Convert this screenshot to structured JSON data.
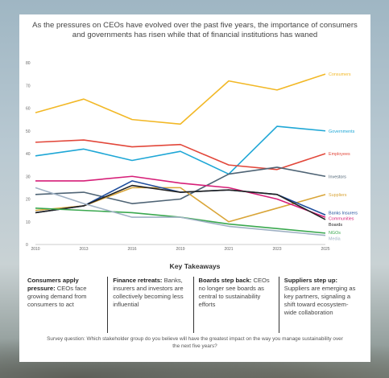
{
  "title": "As the pressures on CEOs have evolved over the past five years, the importance of consumers and governments has risen while that of financial institutions has waned",
  "chart_data": {
    "type": "line",
    "x": [
      "2010",
      "2013",
      "2016",
      "2019",
      "2021",
      "2023",
      "2025"
    ],
    "ylim": [
      0,
      80
    ],
    "yticks": [
      0,
      10,
      20,
      30,
      40,
      50,
      60,
      70,
      80
    ],
    "grid": false,
    "legend": "labels at line ends",
    "series": [
      {
        "name": "Consumers",
        "color": "#f2b826",
        "values": [
          58,
          64,
          55,
          53,
          72,
          68,
          75
        ]
      },
      {
        "name": "Governments",
        "color": "#1fa7d6",
        "values": [
          39,
          42,
          37,
          41,
          31,
          52,
          50
        ]
      },
      {
        "name": "Employees",
        "color": "#e2473a",
        "values": [
          45,
          46,
          43,
          44,
          35,
          33,
          40
        ]
      },
      {
        "name": "Investors",
        "color": "#4f6475",
        "values": [
          22,
          23,
          18,
          20,
          31,
          34,
          30
        ]
      },
      {
        "name": "Suppliers",
        "color": "#d9a538",
        "values": [
          15,
          17,
          25,
          25,
          10,
          16,
          22
        ]
      },
      {
        "name": "Banks Insurers",
        "color": "#1f4e9c",
        "values": [
          14,
          17,
          28,
          23,
          24,
          22,
          13
        ]
      },
      {
        "name": "Communities",
        "color": "#d61f78",
        "values": [
          28,
          28,
          30,
          27,
          25,
          20,
          12
        ]
      },
      {
        "name": "Boards",
        "color": "#222222",
        "values": [
          14,
          17,
          26,
          23,
          24,
          22,
          11
        ]
      },
      {
        "name": "NGOs",
        "color": "#3aa84f",
        "values": [
          16,
          15,
          14,
          12,
          9,
          7,
          5
        ]
      },
      {
        "name": "Media",
        "color": "#9fb1c4",
        "values": [
          25,
          18,
          12,
          12,
          8,
          6,
          4
        ]
      }
    ]
  },
  "takeaways_title": "Key Takeaways",
  "takeaways": [
    {
      "head": "Consumers apply pressure:",
      "body": " CEOs face growing demand from consumers to act"
    },
    {
      "head": "Finance retreats:",
      "body": " Banks, insurers and investors are collectively becoming less influential"
    },
    {
      "head": "Boards step back:",
      "body": " CEOs no longer see boards as central to sustainability efforts"
    },
    {
      "head": "Suppliers step up:",
      "body": " Suppliers are emerging as key partners, signaling a shift toward ecosystem-wide collaboration"
    }
  ],
  "survey": "Survey question: Which stakeholder group do you believe will have the greatest impact on the way you manage sustainability over the next five years?"
}
